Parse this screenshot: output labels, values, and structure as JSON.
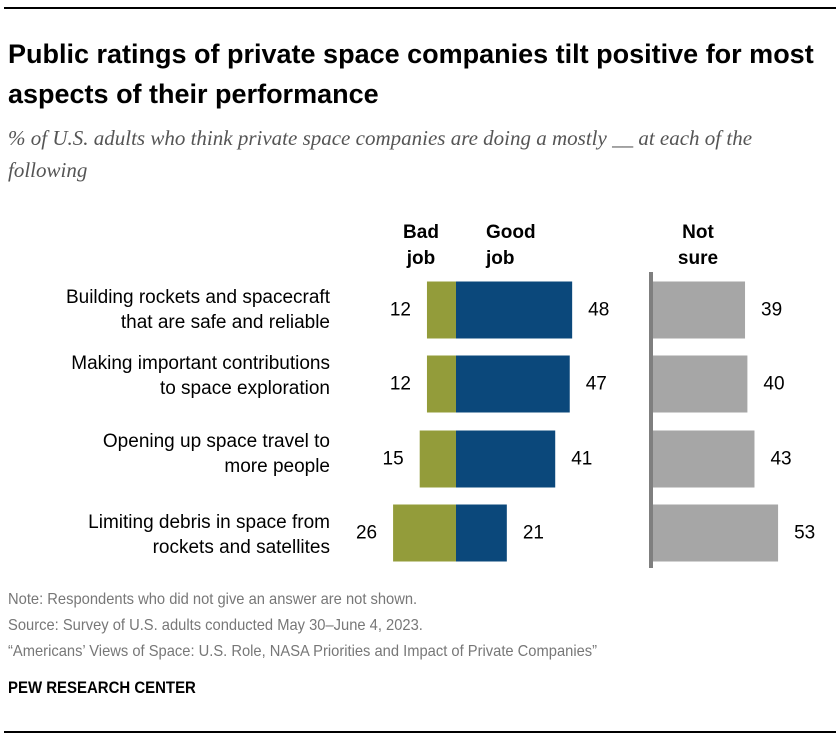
{
  "title": "Public ratings of private space companies tilt positive for most aspects of their performance",
  "subtitle": "% of U.S. adults who think private space companies are doing a mostly __ at each of the following",
  "chart_data": {
    "type": "bar",
    "categories": [
      "Building rockets and spacecraft that are safe and reliable",
      "Making important contributions to space exploration",
      "Opening up space travel to more people",
      "Limiting debris in space from rockets and satellites"
    ],
    "category_lines": [
      [
        "Building rockets and spacecraft",
        "that are safe and reliable"
      ],
      [
        "Making important contributions",
        "to space exploration"
      ],
      [
        "Opening up space travel to",
        "more people"
      ],
      [
        "Limiting debris in space from",
        "rockets and satellites"
      ]
    ],
    "series": [
      {
        "name": "Bad job",
        "name_lines": [
          "Bad",
          "job"
        ],
        "values": [
          12,
          12,
          15,
          26
        ],
        "color": "#939c3a"
      },
      {
        "name": "Good job",
        "name_lines": [
          "Good",
          "job"
        ],
        "values": [
          48,
          47,
          41,
          21
        ],
        "color": "#0b487b"
      },
      {
        "name": "Not sure",
        "name_lines": [
          "Not",
          "sure"
        ],
        "values": [
          39,
          40,
          43,
          53
        ],
        "color": "#a6a6a6"
      }
    ],
    "layout": "diverging bars (Bad job left, Good job right) plus separate Not sure bars",
    "grid": false
  },
  "notes": {
    "note": "Note: Respondents who did not give an answer are not shown.",
    "source": "Source: Survey of U.S. adults conducted May 30–June 4, 2023.",
    "report": "“Americans’ Views of Space: U.S. Role, NASA Priorities and Impact of Private Companies”"
  },
  "brand": "PEW RESEARCH CENTER"
}
